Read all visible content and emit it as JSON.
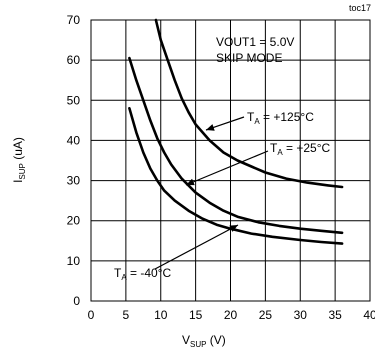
{
  "chart_data": {
    "type": "line",
    "tag": "toc17",
    "xlabel": {
      "main": "V",
      "sub": "SUP",
      "unit": " (V)"
    },
    "ylabel": {
      "main": "I",
      "sub": "SUP",
      "unit": " (uA)"
    },
    "xlim": [
      0,
      40
    ],
    "ylim": [
      0,
      70
    ],
    "xticks": [
      0,
      5,
      10,
      15,
      20,
      25,
      30,
      35,
      40
    ],
    "yticks": [
      0,
      10,
      20,
      30,
      40,
      50,
      60,
      70
    ],
    "grid": true,
    "annotations": {
      "line1": "VOUT1 = 5.0V",
      "line2": "SKIP MODE"
    },
    "series": [
      {
        "name": "TA = +125°C",
        "label": {
          "prefix": "T",
          "sub": "A",
          "text": " = +125°C"
        },
        "points": [
          [
            9.3,
            70
          ],
          [
            10,
            65
          ],
          [
            11,
            60
          ],
          [
            12,
            55
          ],
          [
            13,
            50.5
          ],
          [
            14,
            47
          ],
          [
            15,
            44
          ],
          [
            17,
            40
          ],
          [
            19,
            37
          ],
          [
            21,
            35
          ],
          [
            23,
            33.5
          ],
          [
            25,
            32
          ],
          [
            28,
            30.5
          ],
          [
            31,
            29.5
          ],
          [
            34,
            28.8
          ],
          [
            36,
            28.4
          ]
        ]
      },
      {
        "name": "TA = +25°C",
        "label": {
          "prefix": "T",
          "sub": "A",
          "text": " = +25°C"
        },
        "points": [
          [
            5.5,
            60.5
          ],
          [
            6.5,
            55
          ],
          [
            7.5,
            50
          ],
          [
            8.5,
            45
          ],
          [
            9.5,
            40.5
          ],
          [
            10.5,
            37
          ],
          [
            11.5,
            34
          ],
          [
            13,
            30.5
          ],
          [
            15,
            27
          ],
          [
            17,
            24.5
          ],
          [
            19,
            22.5
          ],
          [
            21,
            21
          ],
          [
            24,
            19.6
          ],
          [
            27,
            18.7
          ],
          [
            30,
            18
          ],
          [
            33,
            17.5
          ],
          [
            36,
            17
          ]
        ]
      },
      {
        "name": "TA = -40°C",
        "label": {
          "prefix": "T",
          "sub": "A",
          "text": " = -40°C"
        },
        "points": [
          [
            5.5,
            48
          ],
          [
            6.5,
            42
          ],
          [
            7.5,
            37
          ],
          [
            8.5,
            33
          ],
          [
            9.5,
            30
          ],
          [
            10.5,
            27.5
          ],
          [
            12,
            25
          ],
          [
            14,
            22.5
          ],
          [
            16,
            20.5
          ],
          [
            18,
            19
          ],
          [
            20,
            18
          ],
          [
            23,
            16.8
          ],
          [
            26,
            16
          ],
          [
            30,
            15.2
          ],
          [
            33,
            14.7
          ],
          [
            36,
            14.3
          ]
        ]
      }
    ]
  }
}
